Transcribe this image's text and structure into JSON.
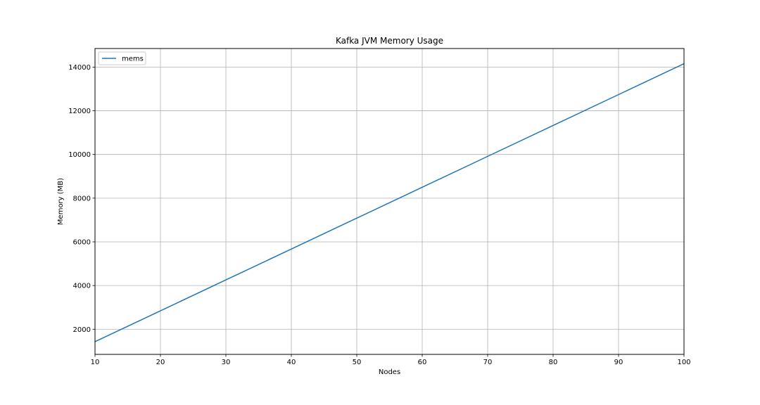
{
  "chart_data": {
    "type": "line",
    "title": "Kafka JVM Memory Usage",
    "xlabel": "Nodes",
    "ylabel": "Memory (MB)",
    "xlim": [
      10,
      100
    ],
    "ylim": [
      850,
      14850
    ],
    "xticks": [
      10,
      20,
      30,
      40,
      50,
      60,
      70,
      80,
      90,
      100
    ],
    "yticks": [
      2000,
      4000,
      6000,
      8000,
      10000,
      12000,
      14000
    ],
    "grid": true,
    "legend": "top-left",
    "series": [
      {
        "name": "mems",
        "color": "#1f77b4",
        "x": [
          10,
          20,
          30,
          40,
          50,
          60,
          70,
          80,
          90,
          100
        ],
        "y": [
          1430,
          2844,
          4258,
          5672,
          7086,
          8500,
          9914,
          11328,
          12742,
          14156
        ]
      }
    ]
  }
}
